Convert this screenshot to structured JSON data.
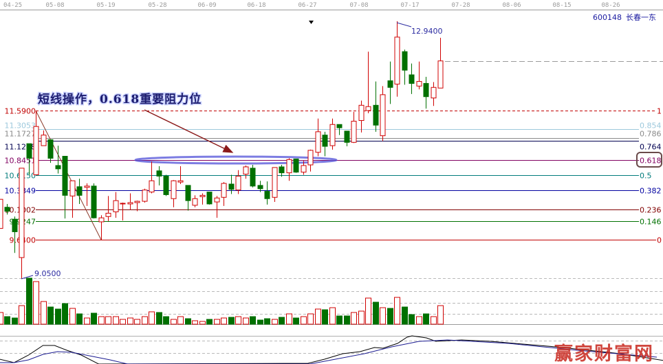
{
  "header": {
    "stock_code": "600148",
    "stock_name": "长春一东",
    "dates": [
      "04-25",
      "05-08",
      "05-19",
      "05-28",
      "06-09",
      "06-18",
      "06-27",
      "07-08",
      "07-17",
      "07-28",
      "08-06",
      "08-15",
      "08-26"
    ]
  },
  "annotation": {
    "text": "短线操作，0.618重要阻力位",
    "highlight_level": "0.618",
    "arrow_color": "#8b1a1a",
    "ellipse_color": "#4a4ad0"
  },
  "watermark": "赢家财富网",
  "chart_data": {
    "type": "candlestick",
    "price_range": [
      9.05,
      12.94
    ],
    "high_label": "12.9400",
    "low_label": "9.0500",
    "up_color": "#d00000",
    "down_color": "#007000",
    "fib_levels": [
      {
        "ratio": "1",
        "price": "11.5900",
        "value": 11.59,
        "color": "#c00000",
        "dashed": true
      },
      {
        "ratio": "0.854",
        "price": "11.3053",
        "value": 11.3053,
        "color": "#9cc8dc"
      },
      {
        "ratio": "0.786",
        "price": "11.1727",
        "value": 11.1727,
        "color": "#8a8a8a"
      },
      {
        "ratio": "0.764",
        "price": "11.1298",
        "value": 11.1298,
        "color": "#000050"
      },
      {
        "ratio": "0.618",
        "price": "10.8451",
        "value": 10.8451,
        "color": "#800060"
      },
      {
        "ratio": "0.5",
        "price": "10.6150",
        "value": 10.615,
        "color": "#007b7b"
      },
      {
        "ratio": "0.382",
        "price": "10.3849",
        "value": 10.3849,
        "color": "#0000a0"
      },
      {
        "ratio": "0.236",
        "price": "10.1002",
        "value": 10.1002,
        "color": "#800000"
      },
      {
        "ratio": "0.146",
        "price": "9.9247",
        "value": 9.9247,
        "color": "#007000"
      },
      {
        "ratio": "0",
        "price": "9.6400",
        "value": 9.64,
        "color": "#c00000"
      }
    ],
    "candles": [
      [
        9.81,
        10.25,
        9.81,
        10.25
      ],
      [
        10.13,
        10.18,
        10.02,
        10.07
      ],
      [
        9.95,
        9.99,
        9.44,
        9.76
      ],
      [
        9.37,
        10.72,
        9.05,
        10.72
      ],
      [
        11.09,
        11.09,
        10.62,
        10.87
      ],
      [
        10.62,
        11.59,
        10.62,
        11.35
      ],
      [
        11.06,
        11.29,
        11.06,
        11.22
      ],
      [
        11.15,
        11.15,
        10.8,
        10.87
      ],
      [
        10.76,
        11.06,
        10.64,
        10.71
      ],
      [
        10.9,
        10.9,
        9.96,
        10.31
      ],
      [
        10.3,
        10.53,
        9.97,
        10.53
      ],
      [
        10.44,
        10.56,
        10.18,
        10.31
      ],
      [
        10.43,
        10.49,
        10.15,
        10.45
      ],
      [
        10.45,
        10.49,
        9.96,
        9.97
      ],
      [
        9.91,
        10.01,
        9.64,
        9.97
      ],
      [
        9.99,
        10.3,
        9.92,
        10.04
      ],
      [
        10.06,
        10.36,
        9.97,
        10.23
      ],
      [
        10.18,
        10.2,
        9.93,
        10.19
      ],
      [
        10.18,
        10.34,
        10.09,
        10.2
      ],
      [
        10.2,
        10.23,
        10.07,
        10.22
      ],
      [
        10.22,
        10.41,
        10.2,
        10.39
      ],
      [
        10.36,
        10.82,
        10.34,
        10.53
      ],
      [
        10.68,
        10.75,
        10.46,
        10.6
      ],
      [
        10.6,
        10.62,
        10.3,
        10.32
      ],
      [
        10.26,
        10.54,
        10.13,
        10.53
      ],
      [
        10.51,
        10.75,
        10.48,
        10.53
      ],
      [
        10.46,
        10.46,
        10.08,
        10.23
      ],
      [
        10.16,
        10.31,
        10.13,
        10.26
      ],
      [
        10.29,
        10.34,
        10.17,
        10.31
      ],
      [
        10.36,
        10.36,
        10.17,
        10.18
      ],
      [
        10.21,
        10.3,
        9.97,
        10.27
      ],
      [
        10.28,
        10.51,
        10.15,
        10.49
      ],
      [
        10.48,
        10.62,
        10.33,
        10.4
      ],
      [
        10.39,
        10.69,
        10.33,
        10.6
      ],
      [
        10.63,
        10.76,
        10.56,
        10.74
      ],
      [
        10.72,
        10.77,
        10.43,
        10.45
      ],
      [
        10.46,
        10.53,
        10.36,
        10.41
      ],
      [
        10.37,
        10.52,
        10.17,
        10.26
      ],
      [
        10.28,
        10.73,
        10.21,
        10.73
      ],
      [
        10.74,
        10.77,
        10.59,
        10.65
      ],
      [
        10.65,
        10.87,
        10.53,
        10.85
      ],
      [
        10.86,
        10.86,
        10.65,
        10.66
      ],
      [
        10.66,
        10.83,
        10.62,
        10.76
      ],
      [
        10.77,
        11.0,
        10.67,
        10.99
      ],
      [
        10.96,
        11.47,
        10.9,
        11.27
      ],
      [
        11.22,
        11.27,
        10.9,
        11.05
      ],
      [
        11.06,
        11.47,
        11.0,
        11.38
      ],
      [
        11.38,
        11.38,
        11.22,
        11.33
      ],
      [
        11.28,
        11.28,
        11.05,
        11.11
      ],
      [
        11.11,
        11.57,
        11.1,
        11.43
      ],
      [
        11.44,
        11.74,
        11.26,
        11.67
      ],
      [
        11.59,
        12.48,
        11.55,
        11.65
      ],
      [
        11.67,
        12.03,
        11.27,
        11.37
      ],
      [
        11.21,
        11.96,
        11.13,
        11.83
      ],
      [
        12.04,
        12.33,
        11.69,
        11.94
      ],
      [
        11.99,
        12.94,
        11.8,
        12.7
      ],
      [
        12.48,
        12.51,
        11.98,
        12.2
      ],
      [
        12.13,
        12.3,
        11.84,
        12.0
      ],
      [
        11.96,
        12.33,
        11.91,
        12.03
      ],
      [
        12.0,
        12.1,
        11.62,
        11.8
      ],
      [
        11.78,
        12.02,
        11.66,
        11.94
      ],
      [
        11.93,
        12.69,
        11.93,
        12.34
      ]
    ],
    "volume": [
      17,
      11,
      9,
      27,
      67,
      62,
      33,
      25,
      22,
      30,
      23,
      15,
      9,
      16,
      11,
      11,
      11,
      7,
      9,
      7,
      11,
      18,
      17,
      11,
      7,
      11,
      8,
      5,
      4,
      7,
      7,
      9,
      10,
      11,
      9,
      11,
      6,
      8,
      7,
      10,
      15,
      9,
      11,
      15,
      22,
      21,
      24,
      12,
      12,
      17,
      19,
      38,
      32,
      24,
      23,
      39,
      25,
      14,
      11,
      15,
      11,
      27
    ],
    "indicator": {
      "dif": [
        [
          0,
          0.07
        ],
        [
          2,
          0.02
        ],
        [
          4,
          0.13
        ],
        [
          6,
          0.27
        ],
        [
          7.6,
          0.27
        ],
        [
          9.3,
          0.2
        ],
        [
          11.3,
          0.13
        ],
        [
          13.7,
          0.0
        ],
        [
          42.7,
          0.01
        ],
        [
          45,
          0.07
        ],
        [
          47.5,
          0.15
        ],
        [
          49.9,
          0.18
        ],
        [
          51.9,
          0.24
        ],
        [
          53.1,
          0.23
        ],
        [
          55.1,
          0.3
        ],
        [
          56.4,
          0.39
        ],
        [
          57.1,
          0.41
        ],
        [
          59.1,
          0.38
        ],
        [
          60.4,
          0.33
        ],
        [
          64,
          0.35
        ],
        [
          68,
          0.33
        ],
        [
          77,
          0.25
        ],
        [
          86,
          0.15
        ],
        [
          92,
          0.05
        ]
      ],
      "dea": [
        [
          0,
          0.02
        ],
        [
          2,
          0.02
        ],
        [
          4,
          0.06
        ],
        [
          6,
          0.14
        ],
        [
          8,
          0.18
        ],
        [
          10,
          0.17
        ],
        [
          12.4,
          0.12
        ],
        [
          15.3,
          0.06
        ],
        [
          17.7,
          0.0
        ],
        [
          43,
          0.0
        ],
        [
          47,
          0.08
        ],
        [
          50.5,
          0.15
        ],
        [
          54.3,
          0.25
        ],
        [
          58.1,
          0.33
        ],
        [
          62,
          0.35
        ],
        [
          70.5,
          0.3
        ],
        [
          80,
          0.2
        ],
        [
          91,
          0.1
        ]
      ]
    }
  }
}
